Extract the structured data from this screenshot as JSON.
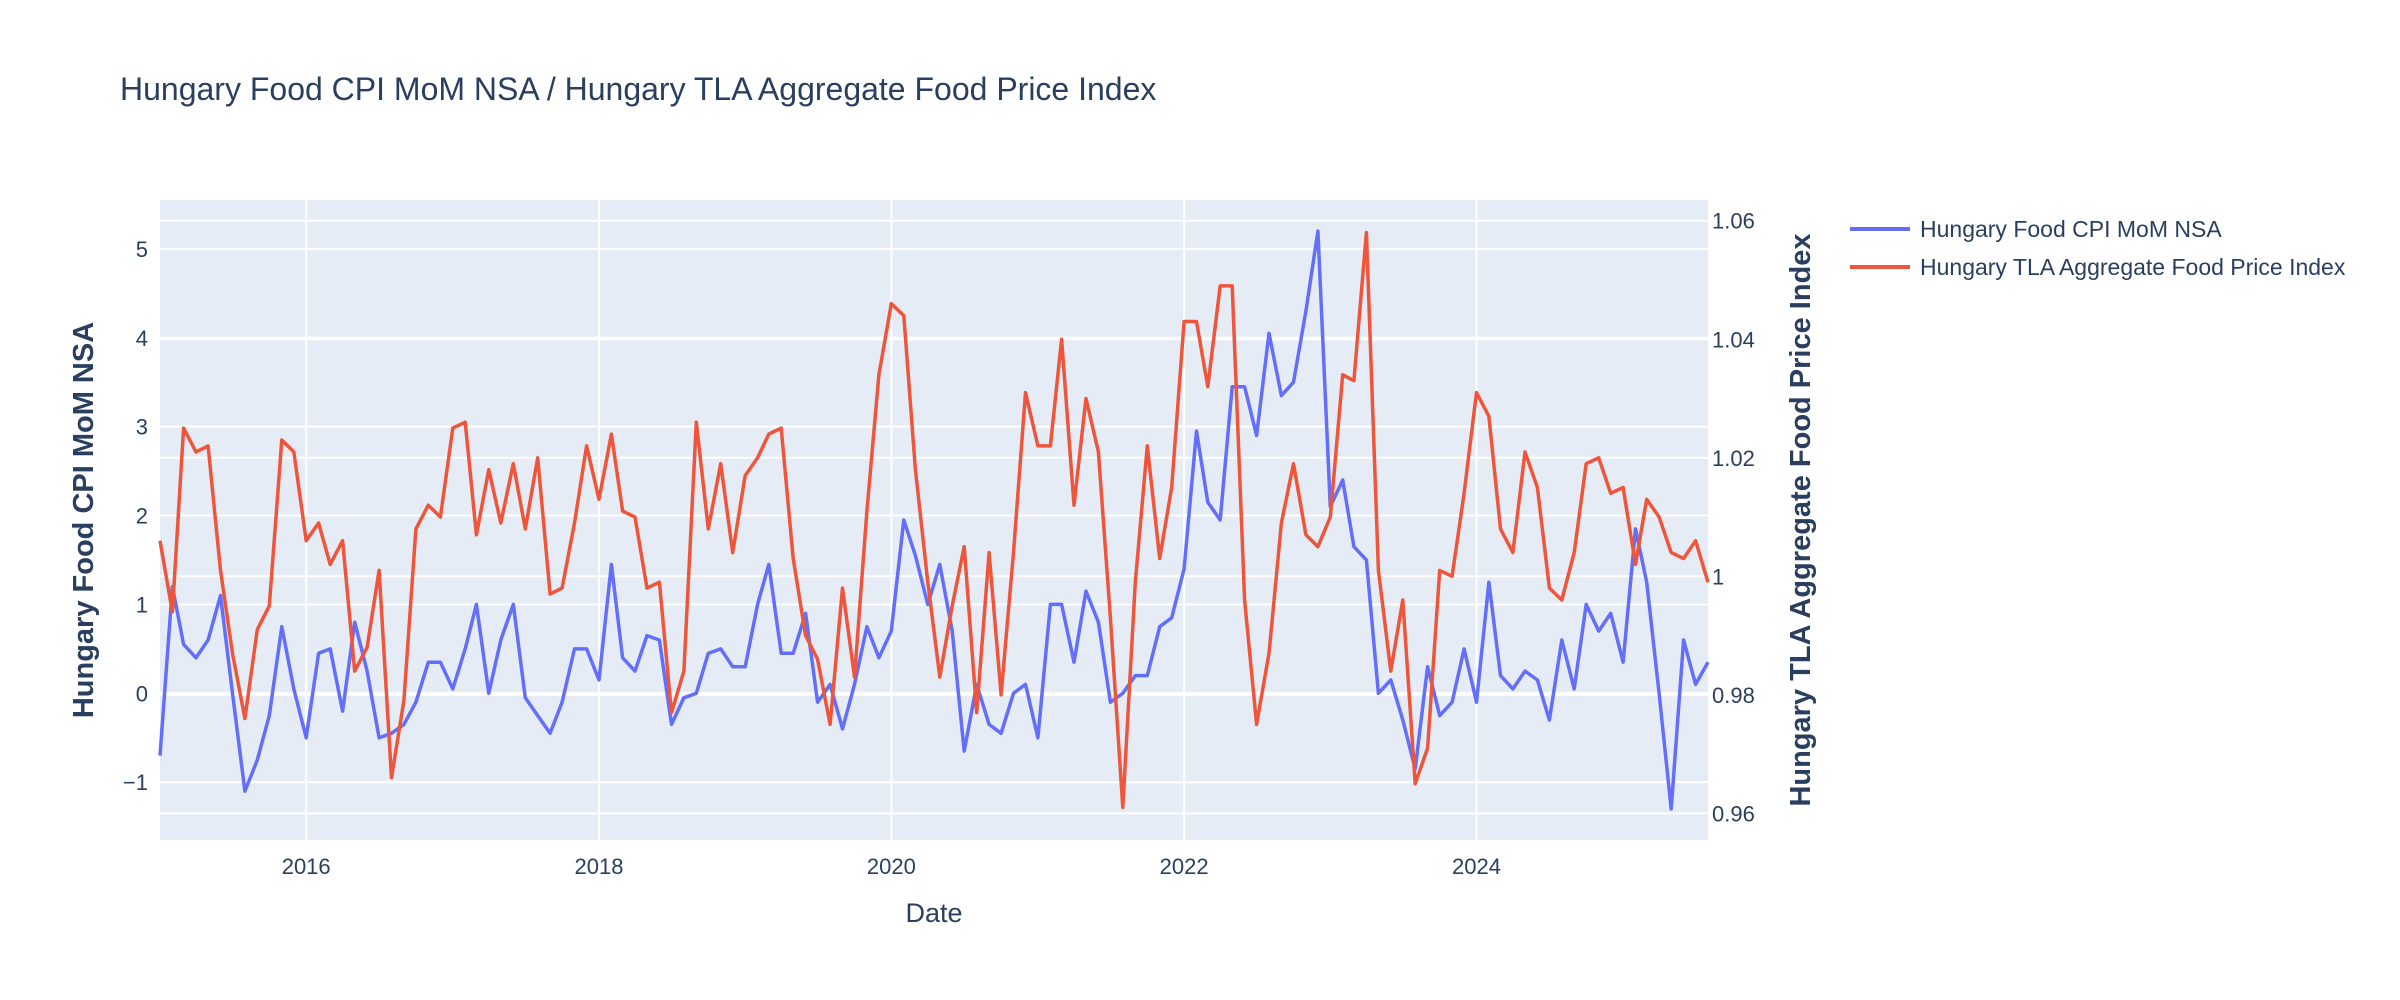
{
  "chart_data": {
    "type": "line",
    "title": "Hungary Food CPI MoM NSA / Hungary TLA Aggregate Food Price Index",
    "xlabel": "Date",
    "x_axis": {
      "type": "date",
      "range": [
        "2015-01-01",
        "2025-08-01"
      ],
      "tick_labels": [
        "2016",
        "2018",
        "2020",
        "2022",
        "2024"
      ],
      "tick_dates": [
        "2016-01-01",
        "2018-01-01",
        "2020-01-01",
        "2022-01-01",
        "2024-01-01"
      ]
    },
    "y_left": {
      "label": "Hungary Food CPI MoM NSA",
      "range": [
        -1.65,
        5.55
      ],
      "ticks": [
        -1,
        0,
        1,
        2,
        3,
        4,
        5
      ],
      "tick_labels": [
        "−1",
        "0",
        "1",
        "2",
        "3",
        "4",
        "5"
      ]
    },
    "y_right": {
      "label": "Hungary TLA Aggregate Food Price Index",
      "range": [
        0.9555,
        1.0635
      ],
      "ticks": [
        0.96,
        0.98,
        1.0,
        1.02,
        1.04,
        1.06
      ],
      "tick_labels": [
        "0.96",
        "0.98",
        "1",
        "1.02",
        "1.04",
        "1.06"
      ]
    },
    "grid": true,
    "legend_position": "top-right",
    "start_date": "2015-01",
    "series": [
      {
        "name": "Hungary Food CPI MoM NSA",
        "color": "#636efa",
        "axis": "left",
        "values": [
          -0.7,
          1.2,
          0.55,
          0.4,
          0.6,
          1.1,
          0.0,
          -1.1,
          -0.75,
          -0.25,
          0.75,
          0.05,
          -0.5,
          0.45,
          0.5,
          -0.2,
          0.8,
          0.25,
          -0.5,
          -0.45,
          -0.35,
          -0.1,
          0.35,
          0.35,
          0.05,
          0.5,
          1.0,
          0.0,
          0.6,
          1.0,
          -0.05,
          -0.25,
          -0.45,
          -0.1,
          0.5,
          0.5,
          0.15,
          1.45,
          0.4,
          0.25,
          0.65,
          0.6,
          -0.35,
          -0.05,
          0.0,
          0.45,
          0.5,
          0.3,
          0.3,
          1.0,
          1.45,
          0.45,
          0.45,
          0.9,
          -0.1,
          0.1,
          -0.4,
          0.1,
          0.75,
          0.4,
          0.7,
          1.95,
          1.55,
          1.0,
          1.45,
          0.7,
          -0.65,
          0.1,
          -0.35,
          -0.45,
          0.0,
          0.1,
          -0.5,
          1.0,
          1.0,
          0.35,
          1.15,
          0.8,
          -0.1,
          0.0,
          0.2,
          0.2,
          0.75,
          0.85,
          1.4,
          2.95,
          2.15,
          1.95,
          3.45,
          3.45,
          2.9,
          4.05,
          3.35,
          3.5,
          4.3,
          5.2,
          2.1,
          2.4,
          1.65,
          1.5,
          0.0,
          0.15,
          -0.3,
          -0.85,
          0.3,
          -0.25,
          -0.1,
          0.5,
          -0.1,
          1.25,
          0.2,
          0.05,
          0.25,
          0.15,
          -0.3,
          0.6,
          0.05,
          1.0,
          0.7,
          0.9,
          0.35,
          1.85,
          1.25,
          0.0,
          -1.3,
          0.6,
          0.1,
          0.35
        ]
      },
      {
        "name": "Hungary TLA Aggregate Food Price Index",
        "color": "#ef553b",
        "axis": "right",
        "values": [
          1.006,
          0.994,
          1.025,
          1.021,
          1.022,
          1.001,
          0.987,
          0.976,
          0.991,
          0.995,
          1.023,
          1.021,
          1.006,
          1.009,
          1.002,
          1.006,
          0.984,
          0.988,
          1.001,
          0.966,
          0.979,
          1.008,
          1.012,
          1.01,
          1.025,
          1.026,
          1.007,
          1.018,
          1.009,
          1.019,
          1.008,
          1.02,
          0.997,
          0.998,
          1.009,
          1.022,
          1.013,
          1.024,
          1.011,
          1.01,
          0.998,
          0.999,
          0.977,
          0.984,
          1.026,
          1.008,
          1.019,
          1.004,
          1.017,
          1.02,
          1.024,
          1.025,
          1.003,
          0.99,
          0.986,
          0.975,
          0.998,
          0.983,
          1.011,
          1.034,
          1.046,
          1.044,
          1.018,
          0.999,
          0.983,
          0.995,
          1.005,
          0.977,
          1.004,
          0.98,
          1.004,
          1.031,
          1.022,
          1.022,
          1.04,
          1.012,
          1.03,
          1.021,
          0.993,
          0.961,
          0.999,
          1.022,
          1.003,
          1.015,
          1.043,
          1.043,
          1.032,
          1.049,
          1.049,
          0.996,
          0.975,
          0.987,
          1.009,
          1.019,
          1.007,
          1.005,
          1.01,
          1.034,
          1.033,
          1.058,
          1.001,
          0.984,
          0.996,
          0.965,
          0.971,
          1.001,
          1.0,
          1.014,
          1.031,
          1.027,
          1.008,
          1.004,
          1.021,
          1.015,
          0.998,
          0.996,
          1.004,
          1.019,
          1.02,
          1.014,
          1.015,
          1.002,
          1.013,
          1.01,
          1.004,
          1.003,
          1.006,
          0.999
        ]
      }
    ]
  }
}
